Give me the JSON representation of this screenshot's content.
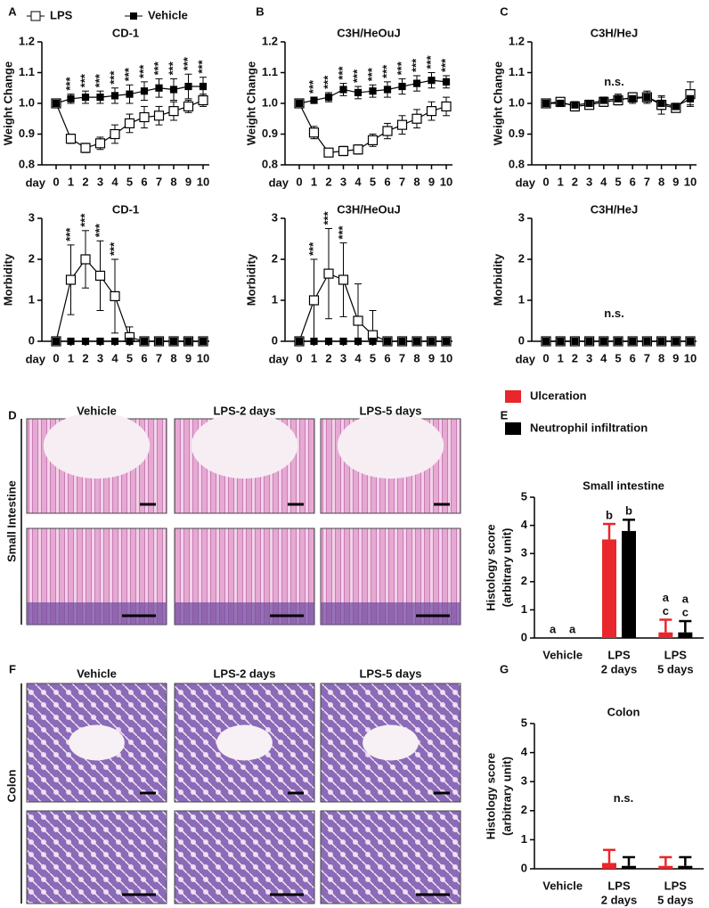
{
  "figure": {
    "panel_labels": [
      "A",
      "B",
      "C",
      "D",
      "E",
      "F",
      "G"
    ],
    "small_intestine": {
      "label": "Small Intestine",
      "columns": [
        "Vehicle",
        "LPS-2 days",
        "LPS-5 days"
      ]
    },
    "colon": {
      "label": "Colon",
      "columns": [
        "Vehicle",
        "LPS-2 days",
        "LPS-5 days"
      ]
    }
  },
  "chart_data": [
    {
      "type": "line",
      "title": "CD-1",
      "ylabel": "Weight Change",
      "xlabel": "day",
      "legend": "top",
      "x": [
        0,
        1,
        2,
        3,
        4,
        5,
        6,
        7,
        8,
        9,
        10
      ],
      "xlim": [
        0,
        10
      ],
      "xticks": [
        0,
        1,
        2,
        3,
        4,
        5,
        6,
        7,
        8,
        9,
        10
      ],
      "ylim": [
        0.8,
        1.2
      ],
      "yticks": [
        0.8,
        0.9,
        {
          "value": 1,
          "label": "1.0"
        },
        1.1,
        1.2
      ],
      "series": [
        {
          "name": "LPS",
          "marker": "open-square",
          "color": "#000",
          "values": [
            1.0,
            0.885,
            0.855,
            0.87,
            0.9,
            0.935,
            0.955,
            0.96,
            0.975,
            0.99,
            1.01
          ],
          "errors": [
            0.01,
            0.015,
            0.015,
            0.02,
            0.03,
            0.03,
            0.035,
            0.03,
            0.03,
            0.02,
            0.02
          ]
        },
        {
          "name": "Vehicle",
          "marker": "filled-square",
          "color": "#000",
          "values": [
            1.0,
            1.015,
            1.02,
            1.02,
            1.025,
            1.03,
            1.04,
            1.05,
            1.045,
            1.055,
            1.055
          ],
          "errors": [
            0.01,
            0.015,
            0.02,
            0.02,
            0.025,
            0.03,
            0.03,
            0.03,
            0.035,
            0.04,
            0.03
          ]
        }
      ],
      "annotations": [
        null,
        "***",
        "***",
        "***",
        "***",
        "***",
        "***",
        "***",
        "***",
        "***",
        "***"
      ],
      "annotation_orientation": "vertical"
    },
    {
      "type": "line",
      "title": "CD-1",
      "ylabel": "Morbidity",
      "xlabel": "day",
      "x": [
        0,
        1,
        2,
        3,
        4,
        5,
        6,
        7,
        8,
        9,
        10
      ],
      "xlim": [
        0,
        10
      ],
      "xticks": [
        0,
        1,
        2,
        3,
        4,
        5,
        6,
        7,
        8,
        9,
        10
      ],
      "ylim": [
        0,
        3
      ],
      "yticks": [
        0,
        1,
        2,
        3
      ],
      "series": [
        {
          "marker": "open-square",
          "color": "#000",
          "values": [
            0,
            1.5,
            2.0,
            1.6,
            1.1,
            0.1,
            0,
            0,
            0,
            0,
            0
          ],
          "errors": [
            0,
            0.85,
            0.7,
            0.85,
            0.9,
            0.25,
            0,
            0,
            0,
            0,
            0
          ]
        },
        {
          "marker": "filled-square",
          "color": "#000",
          "values": [
            0,
            0,
            0,
            0,
            0,
            0,
            0,
            0,
            0,
            0,
            0
          ],
          "errors": [
            0,
            0,
            0,
            0,
            0,
            0,
            0,
            0,
            0,
            0,
            0
          ]
        }
      ],
      "annotations": [
        null,
        "***",
        "***",
        "***",
        "***",
        null,
        null,
        null,
        null,
        null,
        null
      ],
      "annotation_orientation": "vertical"
    },
    {
      "type": "line",
      "title": "C3H/HeOuJ",
      "ylabel": "Weight Change",
      "xlabel": "day",
      "x": [
        0,
        1,
        2,
        3,
        4,
        5,
        6,
        7,
        8,
        9,
        10
      ],
      "xlim": [
        0,
        10
      ],
      "xticks": [
        0,
        1,
        2,
        3,
        4,
        5,
        6,
        7,
        8,
        9,
        10
      ],
      "ylim": [
        0.8,
        1.2
      ],
      "yticks": [
        0.8,
        0.9,
        {
          "value": 1,
          "label": "1.0"
        },
        1.1,
        1.2
      ],
      "series": [
        {
          "marker": "open-square",
          "color": "#000",
          "values": [
            1.0,
            0.905,
            0.84,
            0.845,
            0.85,
            0.88,
            0.91,
            0.93,
            0.95,
            0.975,
            0.99
          ],
          "errors": [
            0.005,
            0.02,
            0.01,
            0.015,
            0.015,
            0.02,
            0.025,
            0.03,
            0.03,
            0.03,
            0.03
          ]
        },
        {
          "marker": "filled-square",
          "color": "#000",
          "values": [
            1.0,
            1.01,
            1.02,
            1.045,
            1.035,
            1.04,
            1.045,
            1.055,
            1.065,
            1.075,
            1.07
          ],
          "errors": [
            0.01,
            0.01,
            0.015,
            0.02,
            0.02,
            0.02,
            0.025,
            0.025,
            0.025,
            0.025,
            0.02
          ]
        }
      ],
      "annotations": [
        null,
        "***",
        "***",
        "***",
        "***",
        "***",
        "***",
        "***",
        "***",
        "***",
        "***"
      ],
      "annotation_orientation": "vertical"
    },
    {
      "type": "line",
      "title": "C3H/HeOuJ",
      "ylabel": "Morbidity",
      "xlabel": "day",
      "x": [
        0,
        1,
        2,
        3,
        4,
        5,
        6,
        7,
        8,
        9,
        10
      ],
      "xlim": [
        0,
        10
      ],
      "xticks": [
        0,
        1,
        2,
        3,
        4,
        5,
        6,
        7,
        8,
        9,
        10
      ],
      "ylim": [
        0,
        3
      ],
      "yticks": [
        0,
        1,
        2,
        3
      ],
      "series": [
        {
          "marker": "open-square",
          "color": "#000",
          "values": [
            0,
            1.0,
            1.65,
            1.5,
            0.5,
            0.15,
            0,
            0,
            0,
            0,
            0
          ],
          "errors": [
            0,
            1.0,
            1.1,
            0.9,
            0.9,
            0.6,
            0,
            0,
            0,
            0,
            0
          ]
        },
        {
          "marker": "filled-square",
          "color": "#000",
          "values": [
            0,
            0,
            0,
            0,
            0,
            0,
            0,
            0,
            0,
            0,
            0
          ],
          "errors": [
            0,
            0,
            0,
            0,
            0,
            0,
            0,
            0,
            0,
            0,
            0
          ]
        }
      ],
      "annotations": [
        null,
        "***",
        "***",
        "***",
        null,
        null,
        null,
        null,
        null,
        null,
        null
      ],
      "annotation_orientation": "vertical"
    },
    {
      "type": "line",
      "title": "C3H/HeJ",
      "ylabel": "Weight Change",
      "xlabel": "day",
      "annotation": "n.s.",
      "x": [
        0,
        1,
        2,
        3,
        4,
        5,
        6,
        7,
        8,
        9,
        10
      ],
      "xlim": [
        0,
        10
      ],
      "xticks": [
        0,
        1,
        2,
        3,
        4,
        5,
        6,
        7,
        8,
        9,
        10
      ],
      "ylim": [
        0.8,
        1.2
      ],
      "yticks": [
        0.8,
        0.9,
        {
          "value": 1,
          "label": "1.0"
        },
        1.1,
        1.2
      ],
      "series": [
        {
          "marker": "open-square",
          "color": "#000",
          "values": [
            1.0,
            1.005,
            0.99,
            0.995,
            1.005,
            1.01,
            1.02,
            1.02,
            0.995,
            0.985,
            1.03
          ],
          "errors": [
            0.01,
            0.01,
            0.015,
            0.01,
            0.015,
            0.015,
            0.015,
            0.02,
            0.03,
            0.01,
            0.04
          ]
        },
        {
          "marker": "filled-square",
          "color": "#000",
          "values": [
            1.0,
            1.0,
            0.995,
            1.0,
            1.01,
            1.015,
            1.015,
            1.02,
            1.0,
            0.99,
            1.015
          ],
          "errors": [
            0.01,
            0.01,
            0.01,
            0.01,
            0.01,
            0.015,
            0.015,
            0.015,
            0.02,
            0.01,
            0.02
          ]
        }
      ]
    },
    {
      "type": "line",
      "title": "C3H/HeJ",
      "ylabel": "Morbidity",
      "xlabel": "day",
      "annotation": "n.s.",
      "x": [
        0,
        1,
        2,
        3,
        4,
        5,
        6,
        7,
        8,
        9,
        10
      ],
      "xlim": [
        0,
        10
      ],
      "xticks": [
        0,
        1,
        2,
        3,
        4,
        5,
        6,
        7,
        8,
        9,
        10
      ],
      "ylim": [
        0,
        3
      ],
      "yticks": [
        0,
        1,
        2,
        3
      ],
      "series": [
        {
          "marker": "open-square",
          "color": "#000",
          "values": [
            0,
            0,
            0,
            0,
            0,
            0,
            0,
            0,
            0,
            0,
            0
          ],
          "errors": [
            0,
            0,
            0,
            0,
            0,
            0,
            0,
            0,
            0,
            0,
            0
          ]
        },
        {
          "marker": "filled-square",
          "color": "#000",
          "values": [
            0,
            0,
            0,
            0,
            0,
            0,
            0,
            0,
            0,
            0,
            0
          ],
          "errors": [
            0,
            0,
            0,
            0,
            0,
            0,
            0,
            0,
            0,
            0,
            0
          ]
        }
      ]
    },
    {
      "type": "bar",
      "title": "Small intestine",
      "ylabel": [
        "Histology score",
        "(arbitrary unit)"
      ],
      "legend": "top-left",
      "categories": [
        "Vehicle",
        [
          "LPS",
          "2 days"
        ],
        [
          "LPS",
          "5 days"
        ]
      ],
      "ylim": [
        0,
        5
      ],
      "yticks": [
        0,
        1,
        2,
        3,
        4,
        5
      ],
      "series": [
        {
          "name": "Ulceration",
          "color": "#e8262b",
          "values": [
            0,
            3.5,
            0.2
          ],
          "errors": [
            0,
            0.55,
            0.45
          ],
          "annotations": [
            [
              "a"
            ],
            [
              "b"
            ],
            [
              "a",
              "c"
            ]
          ]
        },
        {
          "name": "Neutrophil infiltration",
          "color": "#000000",
          "values": [
            0,
            3.8,
            0.2
          ],
          "errors": [
            0,
            0.4,
            0.4
          ],
          "annotations": [
            [
              "a"
            ],
            [
              "b"
            ],
            [
              "a",
              "c"
            ]
          ]
        }
      ]
    },
    {
      "type": "bar",
      "title": "Colon",
      "ylabel": [
        "Histology score",
        "(arbitrary unit)"
      ],
      "annotation": "n.s.",
      "categories": [
        "Vehicle",
        [
          "LPS",
          "2 days"
        ],
        [
          "LPS",
          "5 days"
        ]
      ],
      "ylim": [
        0,
        5
      ],
      "yticks": [
        0,
        1,
        2,
        3,
        4,
        5
      ],
      "series": [
        {
          "color": "#e8262b",
          "values": [
            0,
            0.2,
            0.1
          ],
          "errors": [
            0,
            0.45,
            0.3
          ]
        },
        {
          "color": "#000000",
          "values": [
            0,
            0.1,
            0.1
          ],
          "errors": [
            0,
            0.3,
            0.3
          ]
        }
      ]
    }
  ]
}
